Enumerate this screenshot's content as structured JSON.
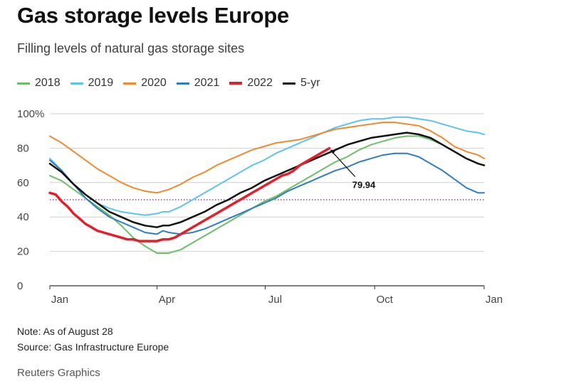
{
  "title": "Gas storage levels Europe",
  "subtitle": "Filling levels of natural gas storage sites",
  "note": "Note: As of August 28",
  "source": "Source: Gas Infrastructure Europe",
  "credit": "Reuters Graphics",
  "chart_data": {
    "type": "line",
    "title": "Gas storage levels Europe",
    "xlabel": "",
    "ylabel": "",
    "x_domain_days": [
      0,
      365
    ],
    "ylim": [
      0,
      100
    ],
    "y_ticks": [
      {
        "value": 0,
        "label": "0"
      },
      {
        "value": 20,
        "label": "20"
      },
      {
        "value": 40,
        "label": "40"
      },
      {
        "value": 60,
        "label": "60"
      },
      {
        "value": 80,
        "label": "80"
      },
      {
        "value": 100,
        "label": "100%"
      }
    ],
    "x_ticks": [
      {
        "day": 0,
        "label": "Jan"
      },
      {
        "day": 90,
        "label": "Apr"
      },
      {
        "day": 181,
        "label": "Jul"
      },
      {
        "day": 273,
        "label": "Oct"
      },
      {
        "day": 365,
        "label": "Jan"
      }
    ],
    "reference_line": {
      "value": 50,
      "style": "dotted",
      "color": "#7a1f8a"
    },
    "series": [
      {
        "name": "2018",
        "color": "#6cbf6a",
        "width": 2,
        "points": [
          [
            0,
            64
          ],
          [
            10,
            61
          ],
          [
            20,
            56
          ],
          [
            30,
            51
          ],
          [
            40,
            46
          ],
          [
            50,
            41
          ],
          [
            60,
            35
          ],
          [
            70,
            28
          ],
          [
            80,
            23
          ],
          [
            90,
            19
          ],
          [
            100,
            19
          ],
          [
            110,
            21
          ],
          [
            120,
            25
          ],
          [
            130,
            29
          ],
          [
            140,
            33
          ],
          [
            150,
            37
          ],
          [
            160,
            41
          ],
          [
            170,
            45
          ],
          [
            180,
            49
          ],
          [
            190,
            52
          ],
          [
            200,
            56
          ],
          [
            210,
            60
          ],
          [
            220,
            64
          ],
          [
            230,
            68
          ],
          [
            240,
            72
          ],
          [
            250,
            75
          ],
          [
            260,
            79
          ],
          [
            270,
            82
          ],
          [
            280,
            84
          ],
          [
            290,
            86
          ],
          [
            300,
            87
          ],
          [
            310,
            87
          ],
          [
            320,
            85
          ],
          [
            330,
            82
          ],
          [
            340,
            78
          ],
          [
            350,
            74
          ],
          [
            360,
            71
          ],
          [
            365,
            70
          ]
        ]
      },
      {
        "name": "2019",
        "color": "#5fc3ec",
        "width": 2,
        "points": [
          [
            0,
            74
          ],
          [
            10,
            67
          ],
          [
            20,
            59
          ],
          [
            30,
            53
          ],
          [
            40,
            48
          ],
          [
            50,
            45
          ],
          [
            60,
            43
          ],
          [
            70,
            42
          ],
          [
            80,
            41
          ],
          [
            90,
            42
          ],
          [
            95,
            43
          ],
          [
            100,
            43
          ],
          [
            110,
            46
          ],
          [
            120,
            50
          ],
          [
            130,
            54
          ],
          [
            140,
            58
          ],
          [
            150,
            62
          ],
          [
            160,
            66
          ],
          [
            170,
            70
          ],
          [
            180,
            73
          ],
          [
            190,
            77
          ],
          [
            200,
            80
          ],
          [
            210,
            83
          ],
          [
            220,
            86
          ],
          [
            230,
            89
          ],
          [
            240,
            92
          ],
          [
            250,
            94
          ],
          [
            260,
            96
          ],
          [
            270,
            97
          ],
          [
            280,
            97
          ],
          [
            290,
            98
          ],
          [
            300,
            98
          ],
          [
            310,
            97
          ],
          [
            320,
            96
          ],
          [
            330,
            94
          ],
          [
            340,
            92
          ],
          [
            350,
            90
          ],
          [
            360,
            89
          ],
          [
            365,
            88
          ]
        ]
      },
      {
        "name": "2020",
        "color": "#ef8a2e",
        "width": 2,
        "points": [
          [
            0,
            87
          ],
          [
            10,
            83
          ],
          [
            20,
            78
          ],
          [
            30,
            73
          ],
          [
            40,
            68
          ],
          [
            50,
            64
          ],
          [
            60,
            60
          ],
          [
            70,
            57
          ],
          [
            80,
            55
          ],
          [
            90,
            54
          ],
          [
            100,
            56
          ],
          [
            110,
            59
          ],
          [
            120,
            63
          ],
          [
            130,
            66
          ],
          [
            140,
            70
          ],
          [
            150,
            73
          ],
          [
            160,
            76
          ],
          [
            170,
            79
          ],
          [
            180,
            81
          ],
          [
            190,
            83
          ],
          [
            200,
            84
          ],
          [
            210,
            85
          ],
          [
            220,
            87
          ],
          [
            230,
            89
          ],
          [
            240,
            91
          ],
          [
            250,
            92
          ],
          [
            260,
            93
          ],
          [
            270,
            94
          ],
          [
            280,
            95
          ],
          [
            290,
            95
          ],
          [
            300,
            94
          ],
          [
            310,
            93
          ],
          [
            320,
            90
          ],
          [
            330,
            86
          ],
          [
            340,
            81
          ],
          [
            350,
            78
          ],
          [
            360,
            76
          ],
          [
            365,
            74
          ]
        ]
      },
      {
        "name": "2021",
        "color": "#2f7dbf",
        "width": 2,
        "points": [
          [
            0,
            73
          ],
          [
            10,
            67
          ],
          [
            20,
            59
          ],
          [
            30,
            51
          ],
          [
            40,
            45
          ],
          [
            50,
            40
          ],
          [
            60,
            37
          ],
          [
            70,
            34
          ],
          [
            80,
            31
          ],
          [
            90,
            30
          ],
          [
            95,
            32
          ],
          [
            100,
            31
          ],
          [
            110,
            30
          ],
          [
            120,
            31
          ],
          [
            130,
            33
          ],
          [
            140,
            36
          ],
          [
            150,
            39
          ],
          [
            160,
            42
          ],
          [
            170,
            45
          ],
          [
            180,
            48
          ],
          [
            190,
            51
          ],
          [
            200,
            55
          ],
          [
            210,
            58
          ],
          [
            220,
            61
          ],
          [
            230,
            64
          ],
          [
            240,
            67
          ],
          [
            250,
            69
          ],
          [
            260,
            72
          ],
          [
            270,
            74
          ],
          [
            280,
            76
          ],
          [
            290,
            77
          ],
          [
            300,
            77
          ],
          [
            310,
            75
          ],
          [
            320,
            71
          ],
          [
            330,
            67
          ],
          [
            340,
            62
          ],
          [
            350,
            57
          ],
          [
            360,
            54
          ],
          [
            365,
            54
          ]
        ]
      },
      {
        "name": "5-yr",
        "color": "#111111",
        "width": 2.5,
        "points": [
          [
            0,
            71
          ],
          [
            10,
            66
          ],
          [
            20,
            59
          ],
          [
            30,
            53
          ],
          [
            40,
            48
          ],
          [
            50,
            43
          ],
          [
            60,
            40
          ],
          [
            70,
            37
          ],
          [
            80,
            35
          ],
          [
            90,
            34
          ],
          [
            95,
            35
          ],
          [
            100,
            35
          ],
          [
            110,
            37
          ],
          [
            120,
            40
          ],
          [
            130,
            43
          ],
          [
            140,
            47
          ],
          [
            150,
            50
          ],
          [
            160,
            54
          ],
          [
            170,
            57
          ],
          [
            180,
            61
          ],
          [
            190,
            64
          ],
          [
            200,
            67
          ],
          [
            210,
            70
          ],
          [
            220,
            73
          ],
          [
            230,
            76
          ],
          [
            240,
            79
          ],
          [
            250,
            82
          ],
          [
            260,
            84
          ],
          [
            270,
            86
          ],
          [
            280,
            87
          ],
          [
            290,
            88
          ],
          [
            300,
            89
          ],
          [
            310,
            88
          ],
          [
            320,
            86
          ],
          [
            330,
            82
          ],
          [
            340,
            78
          ],
          [
            350,
            74
          ],
          [
            360,
            71
          ],
          [
            365,
            70
          ]
        ]
      },
      {
        "name": "2022",
        "color": "#e0202b",
        "width": 3.5,
        "points": [
          [
            0,
            54
          ],
          [
            5,
            53
          ],
          [
            10,
            49
          ],
          [
            15,
            46
          ],
          [
            20,
            42
          ],
          [
            25,
            39
          ],
          [
            30,
            36
          ],
          [
            35,
            34
          ],
          [
            40,
            32
          ],
          [
            45,
            31
          ],
          [
            50,
            30
          ],
          [
            55,
            29
          ],
          [
            60,
            28
          ],
          [
            65,
            27
          ],
          [
            70,
            27
          ],
          [
            75,
            26
          ],
          [
            80,
            26
          ],
          [
            85,
            26
          ],
          [
            90,
            26
          ],
          [
            95,
            27
          ],
          [
            100,
            27
          ],
          [
            105,
            28
          ],
          [
            110,
            30
          ],
          [
            115,
            32
          ],
          [
            120,
            34
          ],
          [
            125,
            36
          ],
          [
            130,
            38
          ],
          [
            135,
            40
          ],
          [
            140,
            42
          ],
          [
            145,
            44
          ],
          [
            150,
            46
          ],
          [
            155,
            48
          ],
          [
            160,
            50
          ],
          [
            165,
            52
          ],
          [
            170,
            54
          ],
          [
            175,
            56
          ],
          [
            180,
            58
          ],
          [
            185,
            60
          ],
          [
            190,
            62
          ],
          [
            195,
            64
          ],
          [
            200,
            65
          ],
          [
            205,
            67
          ],
          [
            210,
            70
          ],
          [
            215,
            72
          ],
          [
            220,
            74
          ],
          [
            225,
            76
          ],
          [
            230,
            78
          ],
          [
            235,
            79.94
          ]
        ]
      }
    ],
    "annotation": {
      "day": 235,
      "value": 79.94,
      "label": "79.94"
    }
  }
}
